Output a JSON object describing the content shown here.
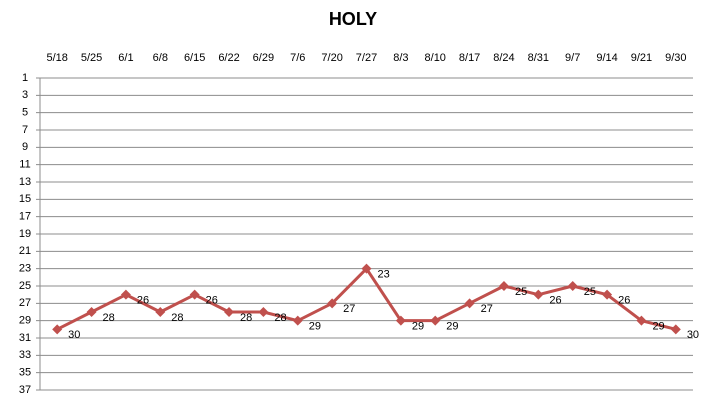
{
  "chart_data": {
    "type": "line",
    "title": "HOLY",
    "categories": [
      "5/18",
      "5/25",
      "6/1",
      "6/8",
      "6/15",
      "6/22",
      "6/29",
      "7/6",
      "7/20",
      "7/27",
      "8/3",
      "8/10",
      "8/17",
      "8/24",
      "8/31",
      "9/7",
      "9/14",
      "9/21",
      "9/30"
    ],
    "series": [
      {
        "name": "HOLY",
        "color": "#c0504d",
        "values": [
          30,
          28,
          26,
          28,
          26,
          28,
          28,
          29,
          27,
          23,
          29,
          29,
          27,
          25,
          26,
          25,
          26,
          29,
          30
        ]
      }
    ],
    "ylim": [
      1,
      37
    ],
    "yticks": [
      1,
      3,
      5,
      7,
      9,
      11,
      13,
      15,
      17,
      19,
      21,
      23,
      25,
      27,
      29,
      31,
      33,
      35,
      37
    ],
    "y_reversed": true,
    "grid": true
  }
}
